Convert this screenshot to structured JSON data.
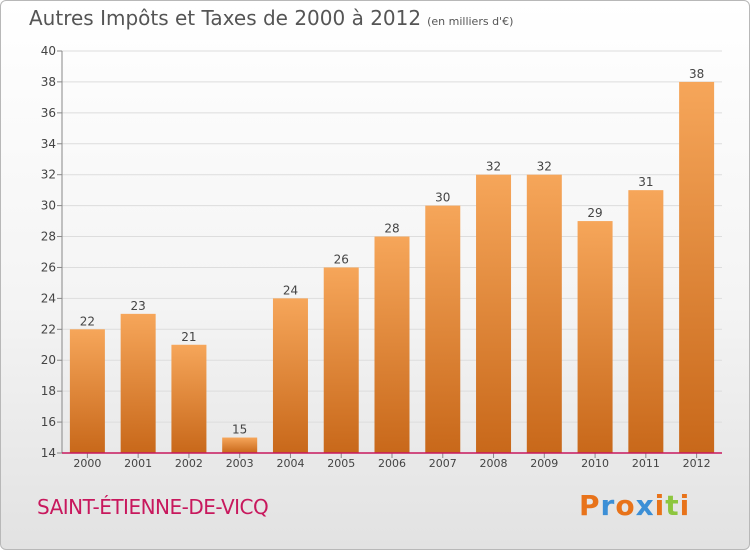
{
  "title": "Autres Impôts et Taxes de 2000 à 2012",
  "subtitle": "(en milliers d'€)",
  "commune": "SAINT-ÉTIENNE-DE-VICQ",
  "logo": {
    "letters": [
      "P",
      "r",
      "o",
      "x",
      "i",
      "t",
      "i"
    ],
    "colors": [
      "#e8731a",
      "#3c8fd6",
      "#e8731a",
      "#3c8fd6",
      "#e8731a",
      "#8dc63f",
      "#e8731a"
    ]
  },
  "colors": {
    "bar_top": "#f6a65a",
    "bar_bottom": "#c8681a",
    "axis": "#c8185d",
    "grid": "#dddddd"
  },
  "chart_data": {
    "type": "bar",
    "categories": [
      "2000",
      "2001",
      "2002",
      "2003",
      "2004",
      "2005",
      "2006",
      "2007",
      "2008",
      "2009",
      "2010",
      "2011",
      "2012"
    ],
    "values": [
      22,
      23,
      21,
      15,
      24,
      26,
      28,
      30,
      32,
      32,
      29,
      31,
      38
    ],
    "yticks": [
      14,
      16,
      18,
      20,
      22,
      24,
      26,
      28,
      30,
      32,
      34,
      36,
      38,
      40
    ],
    "ylim": [
      14,
      40
    ],
    "grid": "horizontal",
    "data_labels": true
  }
}
